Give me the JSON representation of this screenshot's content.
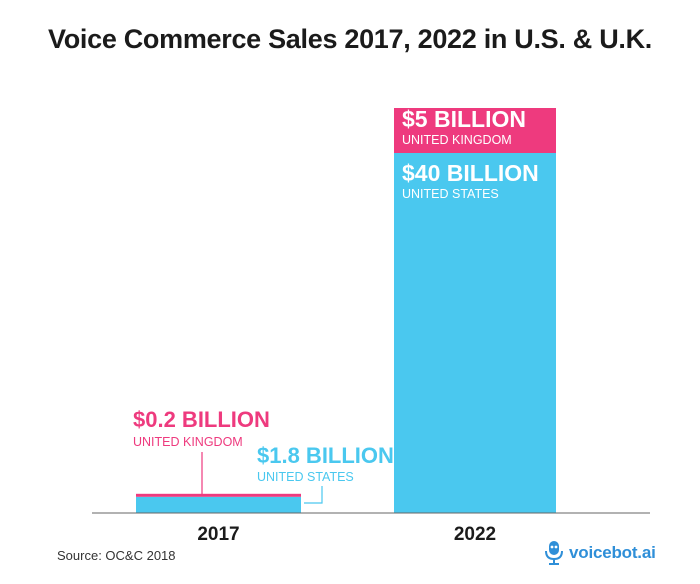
{
  "title": "Voice Commerce Sales 2017, 2022 in U.S. & U.K.",
  "source": "Source: OC&C 2018",
  "brand": "voicebot.ai",
  "colors": {
    "us": "#4ac8ef",
    "uk": "#ee3a7e",
    "axis": "#666666",
    "text_dark": "#1b1b1b",
    "brand": "#2f8fd8"
  },
  "icons": [
    "microphone-robot-icon"
  ],
  "chart_data": {
    "type": "bar",
    "stacked": true,
    "title": "Voice Commerce Sales 2017, 2022 in U.S. & U.K.",
    "categories": [
      "2017",
      "2022"
    ],
    "unit": "Billion",
    "ylim": [
      0,
      45
    ],
    "grid": false,
    "series": [
      {
        "name": "UNITED STATES",
        "values": [
          1.8,
          40
        ],
        "labels": [
          "$1.8 BILLION",
          "$40 BILLION"
        ],
        "color": "#4ac8ef"
      },
      {
        "name": "UNITED KINGDOM",
        "values": [
          0.2,
          5
        ],
        "labels": [
          "$0.2 BILLION",
          "$5 BILLION"
        ],
        "color": "#ee3a7e"
      }
    ]
  }
}
